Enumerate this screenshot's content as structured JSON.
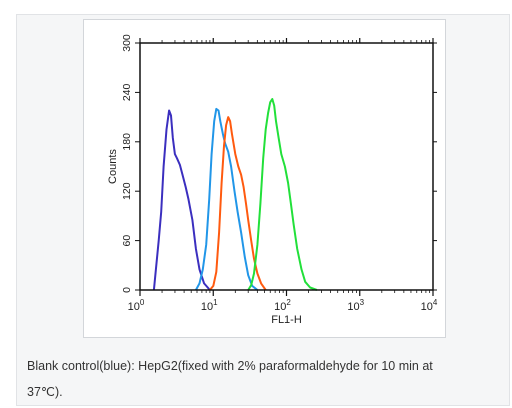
{
  "chart_data": {
    "type": "line",
    "xlabel": "FL1-H",
    "ylabel": "Counts",
    "x_scale": "log",
    "xlim": [
      1,
      10000
    ],
    "ylim": [
      0,
      300
    ],
    "x_ticks": [
      {
        "base": "10",
        "exp": "0"
      },
      {
        "base": "10",
        "exp": "1"
      },
      {
        "base": "10",
        "exp": "2"
      },
      {
        "base": "10",
        "exp": "3"
      },
      {
        "base": "10",
        "exp": "4"
      }
    ],
    "y_ticks": [
      "0",
      "60",
      "120",
      "180",
      "240",
      "300"
    ],
    "series": [
      {
        "color": "#3b2fbf",
        "points": [
          [
            1.55,
            0
          ],
          [
            1.65,
            25
          ],
          [
            1.8,
            60
          ],
          [
            1.95,
            95
          ],
          [
            2.1,
            150
          ],
          [
            2.3,
            195
          ],
          [
            2.5,
            218
          ],
          [
            2.65,
            212
          ],
          [
            2.8,
            185
          ],
          [
            3.0,
            165
          ],
          [
            3.2,
            160
          ],
          [
            3.5,
            152
          ],
          [
            3.8,
            140
          ],
          [
            4.2,
            125
          ],
          [
            4.6,
            110
          ],
          [
            5.2,
            85
          ],
          [
            5.8,
            50
          ],
          [
            6.5,
            25
          ],
          [
            7.5,
            8
          ],
          [
            9,
            0
          ]
        ]
      },
      {
        "color": "#2196e8",
        "points": [
          [
            5.8,
            0
          ],
          [
            6.5,
            8
          ],
          [
            7.2,
            25
          ],
          [
            8.0,
            55
          ],
          [
            8.8,
            110
          ],
          [
            9.5,
            165
          ],
          [
            10.3,
            205
          ],
          [
            11.0,
            220
          ],
          [
            11.8,
            218
          ],
          [
            12.5,
            205
          ],
          [
            13.5,
            190
          ],
          [
            14.5,
            178
          ],
          [
            16,
            168
          ],
          [
            17.5,
            150
          ],
          [
            19.5,
            120
          ],
          [
            21.5,
            95
          ],
          [
            24,
            70
          ],
          [
            27,
            40
          ],
          [
            30,
            18
          ],
          [
            34,
            5
          ],
          [
            40,
            0
          ]
        ]
      },
      {
        "color": "#ff5a0f",
        "points": [
          [
            9,
            0
          ],
          [
            10,
            5
          ],
          [
            11,
            22
          ],
          [
            12,
            70
          ],
          [
            13,
            130
          ],
          [
            14,
            175
          ],
          [
            15,
            200
          ],
          [
            16,
            210
          ],
          [
            17,
            205
          ],
          [
            18,
            190
          ],
          [
            20,
            165
          ],
          [
            22,
            150
          ],
          [
            24,
            140
          ],
          [
            26,
            125
          ],
          [
            28,
            105
          ],
          [
            30,
            85
          ],
          [
            33,
            60
          ],
          [
            36,
            38
          ],
          [
            40,
            20
          ],
          [
            45,
            8
          ],
          [
            52,
            0
          ]
        ]
      },
      {
        "color": "#22e03a",
        "points": [
          [
            30,
            0
          ],
          [
            33,
            6
          ],
          [
            36,
            20
          ],
          [
            40,
            55
          ],
          [
            44,
            105
          ],
          [
            48,
            160
          ],
          [
            52,
            195
          ],
          [
            56,
            215
          ],
          [
            60,
            228
          ],
          [
            64,
            232
          ],
          [
            68,
            224
          ],
          [
            72,
            205
          ],
          [
            78,
            185
          ],
          [
            85,
            165
          ],
          [
            95,
            150
          ],
          [
            105,
            130
          ],
          [
            115,
            105
          ],
          [
            125,
            80
          ],
          [
            140,
            50
          ],
          [
            160,
            25
          ],
          [
            180,
            10
          ],
          [
            210,
            3
          ],
          [
            260,
            0
          ]
        ]
      }
    ]
  },
  "caption": {
    "line1": "Blank control(blue): HepG2(fixed with 2% paraformaldehyde for 10 min at",
    "line2": "37℃)."
  }
}
